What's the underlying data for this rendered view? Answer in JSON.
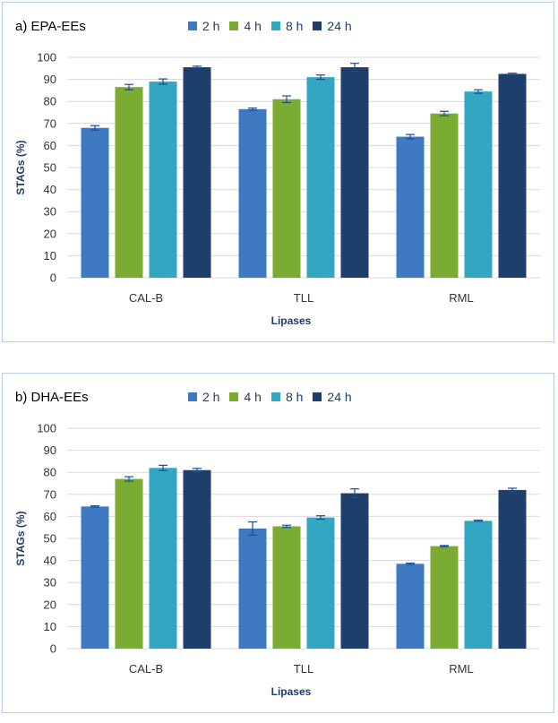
{
  "colors": {
    "2 h": "#3f79c2",
    "4 h": "#7aac32",
    "8 h": "#33a6c2",
    "24 h": "#1e3f6c",
    "error_bar": "#1f4e8f",
    "grid": "#d9d9d9",
    "axis_title": "#1f3d66"
  },
  "chart_data": [
    {
      "panel_label": "a) EPA-EEs",
      "type": "bar",
      "categories": [
        "CAL-B",
        "TLL",
        "RML"
      ],
      "series": [
        {
          "name": "2 h",
          "values": [
            68,
            76.5,
            64
          ],
          "errors": [
            1,
            0.5,
            1
          ]
        },
        {
          "name": "4 h",
          "values": [
            86.5,
            81,
            74.5
          ],
          "errors": [
            1.2,
            1.5,
            1
          ]
        },
        {
          "name": "8 h",
          "values": [
            89,
            91,
            84.5
          ],
          "errors": [
            1.2,
            1,
            0.8
          ]
        },
        {
          "name": "24 h",
          "values": [
            95.5,
            95.5,
            92.5
          ],
          "errors": [
            0.5,
            1.8,
            0.3
          ]
        }
      ],
      "xlabel": "Lipases",
      "ylabel": "STAGs (%)",
      "ylim": [
        0,
        100
      ],
      "yticks": [
        "0",
        "10",
        "20",
        "30",
        "40",
        "50",
        "60",
        "70",
        "80",
        "90",
        "100"
      ],
      "grid": true,
      "legend": "top"
    },
    {
      "panel_label": "b) DHA-EEs",
      "type": "bar",
      "categories": [
        "CAL-B",
        "TLL",
        "RML"
      ],
      "series": [
        {
          "name": "2 h",
          "values": [
            64.5,
            54.5,
            38.5
          ],
          "errors": [
            0.3,
            3,
            0.3
          ]
        },
        {
          "name": "4 h",
          "values": [
            77,
            55.5,
            46.5
          ],
          "errors": [
            1,
            0.5,
            0.3
          ]
        },
        {
          "name": "8 h",
          "values": [
            82,
            59.5,
            58
          ],
          "errors": [
            1.2,
            0.8,
            0.3
          ]
        },
        {
          "name": "24 h",
          "values": [
            81,
            70.5,
            72
          ],
          "errors": [
            0.8,
            2,
            0.8
          ]
        }
      ],
      "xlabel": "Lipases",
      "ylabel": "STAGs (%)",
      "ylim": [
        0,
        100
      ],
      "yticks": [
        "0",
        "10",
        "20",
        "30",
        "40",
        "50",
        "60",
        "70",
        "80",
        "90",
        "100"
      ],
      "grid": true,
      "legend": "top"
    }
  ]
}
